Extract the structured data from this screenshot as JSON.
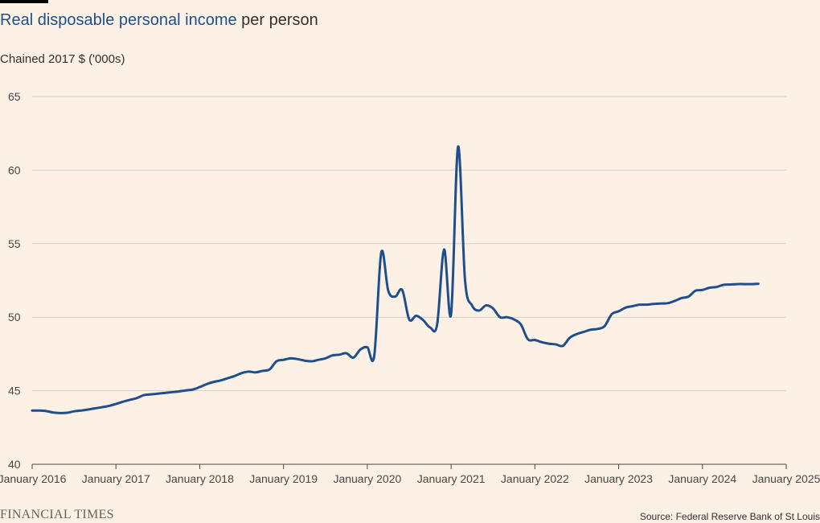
{
  "header": {
    "title_highlight": "Real disposable personal income",
    "title_rest": " per person",
    "subtitle": "Chained 2017 $ ('000s)"
  },
  "footer": {
    "brand": "FINANCIAL TIMES",
    "source": "Source: Federal Reserve Bank of St Louis"
  },
  "colors": {
    "line": "#1e4f8c",
    "background": "#fdf1e6",
    "grid": "#d9ccc0"
  },
  "chart_data": {
    "type": "line",
    "title": "Real disposable personal income per person",
    "ylabel": "Chained 2017 $ ('000s)",
    "xlabel": "",
    "ylim": [
      40,
      65
    ],
    "yticks": [
      40,
      45,
      50,
      55,
      60,
      65
    ],
    "xlim": [
      "2016-01",
      "2025-01"
    ],
    "xticks": [
      "January 2016",
      "January 2017",
      "January 2018",
      "January 2019",
      "January 2020",
      "January 2021",
      "January 2022",
      "January 2023",
      "January 2024",
      "January 2025"
    ],
    "grid": true,
    "series": [
      {
        "x": [
          "2016-01",
          "2016-02",
          "2016-03",
          "2016-04",
          "2016-05",
          "2016-06",
          "2016-07",
          "2016-08",
          "2016-09",
          "2016-10",
          "2016-11",
          "2016-12",
          "2017-01",
          "2017-02",
          "2017-03",
          "2017-04",
          "2017-05",
          "2017-06",
          "2017-07",
          "2017-08",
          "2017-09",
          "2017-10",
          "2017-11",
          "2017-12",
          "2018-01",
          "2018-02",
          "2018-03",
          "2018-04",
          "2018-05",
          "2018-06",
          "2018-07",
          "2018-08",
          "2018-09",
          "2018-10",
          "2018-11",
          "2018-12",
          "2019-01",
          "2019-02",
          "2019-03",
          "2019-04",
          "2019-05",
          "2019-06",
          "2019-07",
          "2019-08",
          "2019-09",
          "2019-10",
          "2019-11",
          "2019-12",
          "2020-01",
          "2020-02",
          "2020-03",
          "2020-04",
          "2020-05",
          "2020-06",
          "2020-07",
          "2020-08",
          "2020-09",
          "2020-10",
          "2020-11",
          "2020-12",
          "2021-01",
          "2021-02",
          "2021-03",
          "2021-04",
          "2021-05",
          "2021-06",
          "2021-07",
          "2021-08",
          "2021-09",
          "2021-10",
          "2021-11",
          "2021-12",
          "2022-01",
          "2022-02",
          "2022-03",
          "2022-04",
          "2022-05",
          "2022-06",
          "2022-07",
          "2022-08",
          "2022-09",
          "2022-10",
          "2022-11",
          "2022-12",
          "2023-01",
          "2023-02",
          "2023-03",
          "2023-04",
          "2023-05",
          "2023-06",
          "2023-07",
          "2023-08",
          "2023-09",
          "2023-10",
          "2023-11",
          "2023-12",
          "2024-01",
          "2024-02",
          "2024-03",
          "2024-04",
          "2024-05",
          "2024-06",
          "2024-07",
          "2024-08",
          "2024-09"
        ],
        "values": [
          43.65,
          43.65,
          43.62,
          43.52,
          43.48,
          43.5,
          43.6,
          43.65,
          43.72,
          43.8,
          43.88,
          43.97,
          44.1,
          44.25,
          44.38,
          44.5,
          44.7,
          44.75,
          44.8,
          44.85,
          44.9,
          44.95,
          45.02,
          45.08,
          45.25,
          45.45,
          45.6,
          45.7,
          45.85,
          46.0,
          46.2,
          46.3,
          46.25,
          46.35,
          46.45,
          47.0,
          47.1,
          47.2,
          47.15,
          47.05,
          47.0,
          47.1,
          47.2,
          47.4,
          47.45,
          47.55,
          47.25,
          47.8,
          47.95,
          47.4,
          54.4,
          51.8,
          51.4,
          51.85,
          49.85,
          50.1,
          49.8,
          49.3,
          49.5,
          54.6,
          50.2,
          61.6,
          52.5,
          50.8,
          50.45,
          50.8,
          50.6,
          50.0,
          50.0,
          49.85,
          49.5,
          48.5,
          48.45,
          48.3,
          48.2,
          48.15,
          48.05,
          48.6,
          48.85,
          49.0,
          49.15,
          49.2,
          49.4,
          50.2,
          50.4,
          50.65,
          50.75,
          50.85,
          50.85,
          50.9,
          50.93,
          50.95,
          51.1,
          51.3,
          51.4,
          51.8,
          51.85,
          52.0,
          52.05,
          52.2,
          52.22,
          52.25,
          52.25,
          52.25,
          52.27
        ]
      }
    ]
  }
}
